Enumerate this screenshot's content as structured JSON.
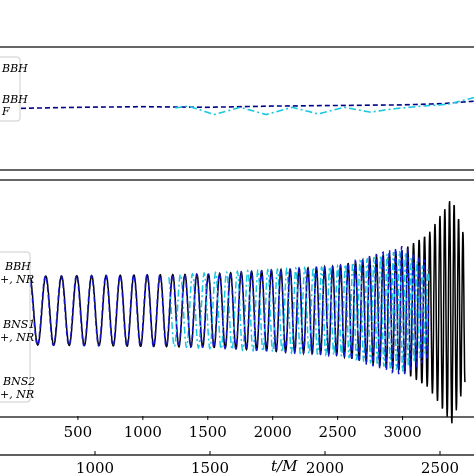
{
  "chart_data": [
    {
      "panel": "top",
      "type": "line",
      "title": "",
      "xlabel": "",
      "ylabel": "",
      "xlim": [
        -100,
        3550
      ],
      "ylim": [
        -1,
        1
      ],
      "legend": {
        "placement": "upper-left",
        "entries": [
          {
            "lines": [
              "BBH",
              ""
            ]
          },
          {
            "lines": [
              "BBH",
              "F"
            ]
          }
        ]
      },
      "series": [
        {
          "color": "#00008b",
          "style": "dashed",
          "x": [
            0,
            500,
            1000,
            1500,
            2000,
            2500,
            3000,
            3300,
            3550
          ],
          "y": [
            0.0,
            0.02,
            0.03,
            0.02,
            0.04,
            0.05,
            0.06,
            0.08,
            0.12
          ]
        },
        {
          "color": "#19c8e0",
          "style": "dashdot",
          "x": [
            1250,
            1350,
            1550,
            1750,
            1950,
            2150,
            2350,
            2550,
            2750,
            2950,
            3150,
            3350,
            3550
          ],
          "y": [
            0.01,
            0.04,
            -0.1,
            0.02,
            -0.1,
            0.02,
            -0.09,
            0.02,
            -0.06,
            0.0,
            0.04,
            0.07,
            0.18
          ]
        }
      ]
    },
    {
      "panel": "bottom",
      "type": "line",
      "title": "",
      "xlabel": "",
      "ylabel": "",
      "xlim": [
        -100,
        3550
      ],
      "ylim": [
        -1.3,
        1.6
      ],
      "xticks": [
        "500",
        "1000",
        "1500",
        "2000",
        "2500",
        "3000"
      ],
      "legend": {
        "placement": "lower-left",
        "entries": [
          {
            "lines": [
              "BBH",
              "+, NR"
            ]
          },
          {
            "lines": [
              "BNS1",
              "+, NR"
            ]
          },
          {
            "lines": [
              "BNS2",
              "+, NR"
            ]
          }
        ]
      },
      "series": [
        {
          "color": "#000000",
          "style": "solid",
          "amplitude_x": [
            0,
            1500,
            2500,
            3000,
            3200,
            3380,
            3480
          ],
          "amplitude": [
            0.42,
            0.45,
            0.55,
            0.75,
            0.95,
            1.4,
            0.9
          ]
        },
        {
          "color": "#19c8e0",
          "style": "dashdot",
          "amplitude_x": [
            1200,
            2500,
            3000,
            3200
          ],
          "amplitude": [
            0.44,
            0.55,
            0.75,
            0.5
          ]
        },
        {
          "color": "#1414c8",
          "style": "dashed",
          "amplitude_x": [
            0,
            1500,
            2500,
            3000,
            3200
          ],
          "amplitude": [
            0.42,
            0.45,
            0.55,
            0.8,
            0.6
          ]
        }
      ]
    },
    {
      "panel": "secondary-x-axis",
      "type": "line",
      "xlabel": "t/M",
      "xticks": [
        "1000",
        "1500",
        "2000",
        "2500"
      ]
    }
  ]
}
